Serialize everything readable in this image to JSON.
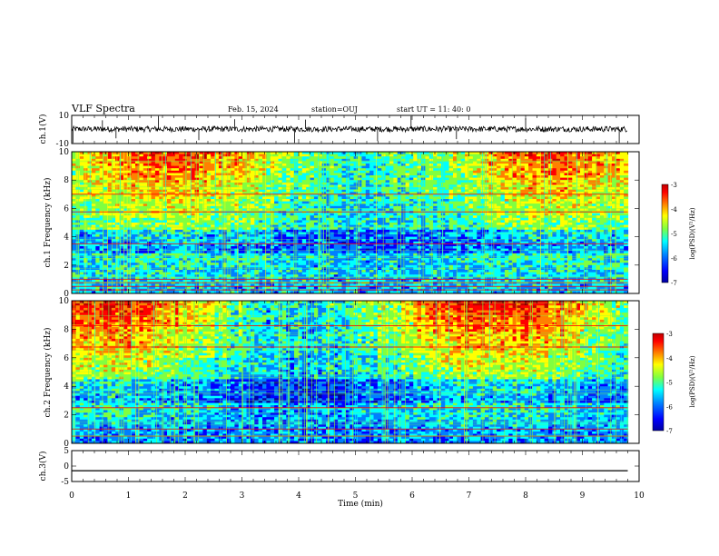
{
  "header": {
    "title": "VLF Spectra",
    "date": "Feb. 15, 2024",
    "station": "station=OUJ",
    "start_ut": "start  UT =   11: 40: 0"
  },
  "chart_data": [
    {
      "type": "line",
      "name": "ch1-waveform",
      "ylabel": "ch.1(V)",
      "ylim": [
        -10,
        10
      ],
      "y_ticks": [
        "10",
        "-10"
      ],
      "baseline": 0.3,
      "noise_amplitude": 2,
      "spikes_x_min": [
        0.02,
        0.54,
        0.78,
        1.53,
        2.24,
        2.87,
        3.93,
        4.12,
        5.39,
        5.98,
        6.78,
        8.0,
        9.65
      ],
      "x_range_min": [
        0,
        9.8
      ]
    },
    {
      "type": "heatmap",
      "name": "ch1-spectrogram",
      "ylabel": "ch.1 Frequency (kHz)",
      "ylim": [
        0,
        10
      ],
      "y_ticks": [
        "0",
        "2",
        "4",
        "6",
        "8",
        "10"
      ],
      "x_range_min": [
        0,
        9.8
      ],
      "colorbar": {
        "label": "log(PSD)(V²/Hz)",
        "range": [
          -7,
          -3
        ],
        "ticks": [
          "-3",
          "-4",
          "-5",
          "-6",
          "-7"
        ]
      },
      "persistent_bands_khz": [
        0.25,
        0.5,
        0.75,
        1.0,
        3.5,
        5.75,
        7.0
      ]
    },
    {
      "type": "heatmap",
      "name": "ch2-spectrogram",
      "ylabel": "ch.2 Frequency (kHz)",
      "ylim": [
        0,
        10
      ],
      "y_ticks": [
        "0",
        "2",
        "4",
        "6",
        "8",
        "10"
      ],
      "x_range_min": [
        0,
        9.8
      ],
      "colorbar": {
        "label": "log(PSD)(V²/Hz)",
        "range": [
          -7,
          -3
        ],
        "ticks": [
          "-3",
          "-4",
          "-5",
          "-6",
          "-7"
        ]
      },
      "persistent_bands_khz": [
        0.5,
        1.0,
        2.5,
        6.75,
        8.25
      ]
    },
    {
      "type": "line",
      "name": "ch3-waveform",
      "ylabel": "ch.3(V)",
      "ylim": [
        -5,
        5
      ],
      "y_ticks": [
        "5",
        "0",
        "-5"
      ],
      "baseline": -1.5,
      "x_range_min": [
        0,
        9.8
      ]
    }
  ],
  "x_axis": {
    "label": "Time (min)",
    "range": [
      0,
      10
    ],
    "ticks": [
      "0",
      "1",
      "2",
      "3",
      "4",
      "5",
      "6",
      "7",
      "8",
      "9",
      "10"
    ]
  },
  "colors": {
    "colormap": [
      "#0000a0",
      "#0000ff",
      "#0080ff",
      "#00ffff",
      "#80ff40",
      "#ffff00",
      "#ff8000",
      "#ff0000",
      "#c00000"
    ],
    "floor": "#000000"
  }
}
